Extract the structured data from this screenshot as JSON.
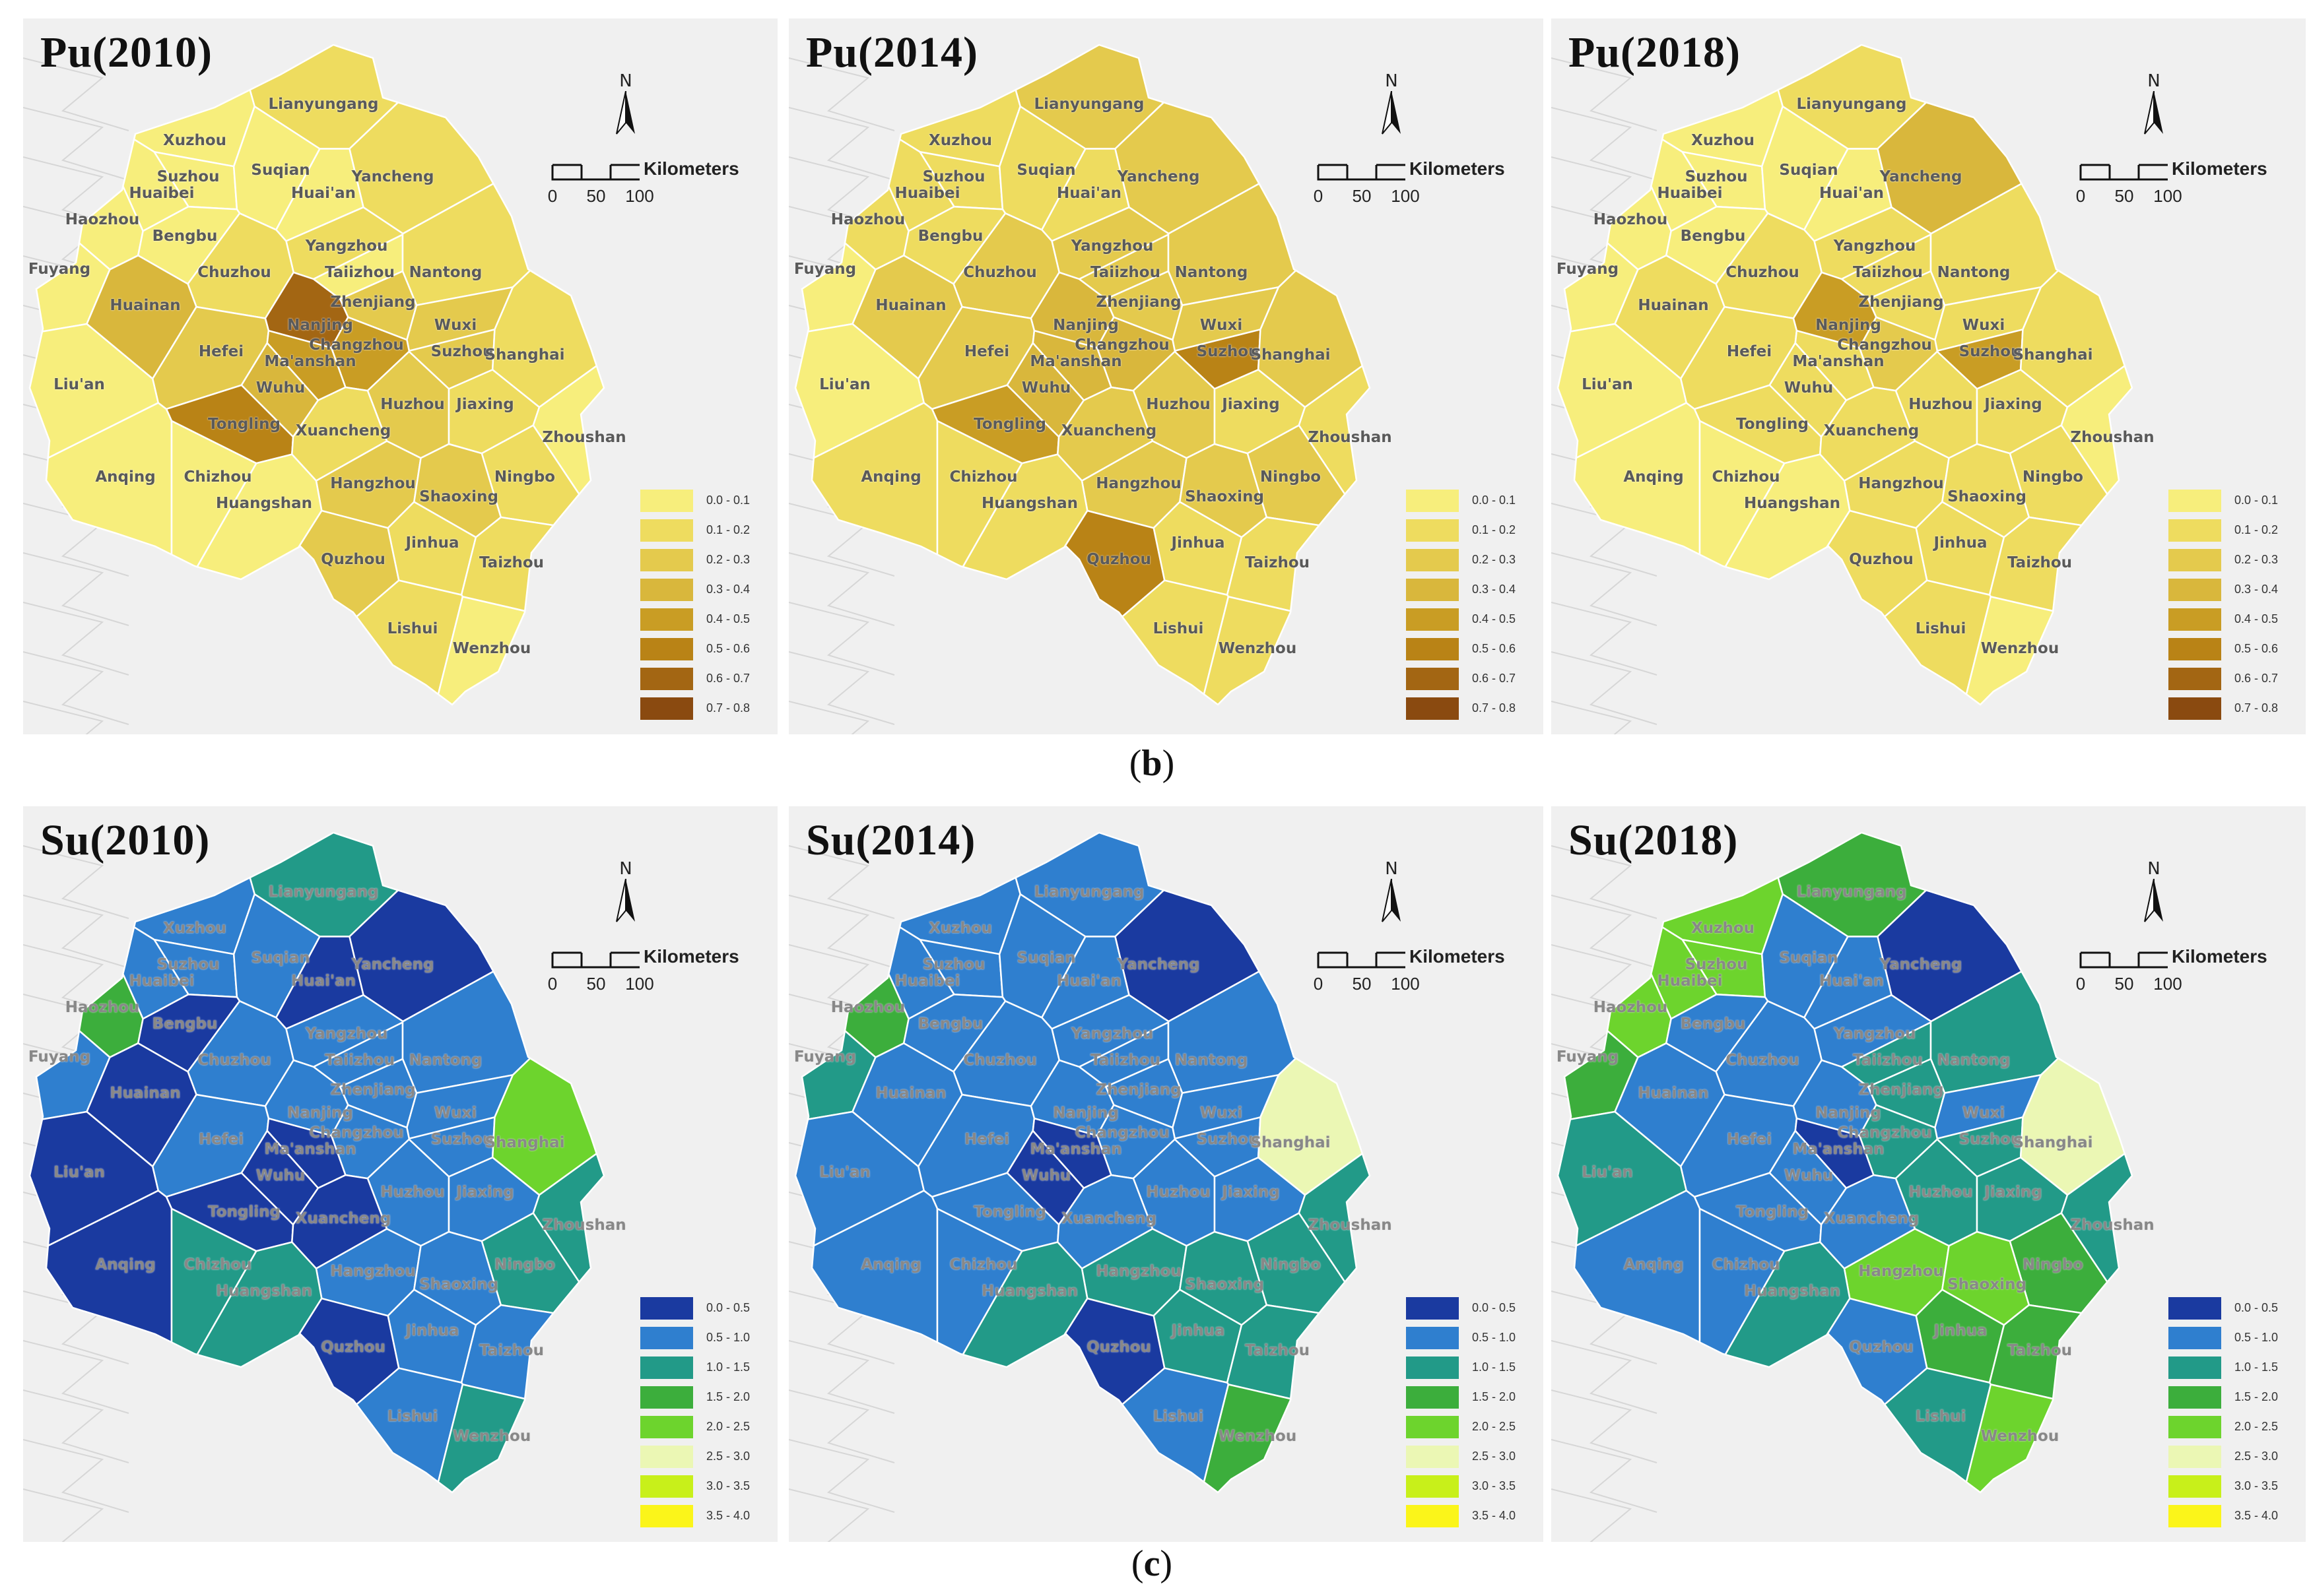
{
  "figure": {
    "captions": [
      {
        "open": "(",
        "letter": "b",
        "close": ")"
      },
      {
        "open": "(",
        "letter": "c",
        "close": ")"
      }
    ]
  },
  "map_common": {
    "north_label": "N",
    "scale_units": "Kilometers",
    "scale_ticks": [
      "0",
      "50",
      "100"
    ]
  },
  "legends": {
    "pu": [
      {
        "label": "0.0 - 0.1",
        "color": "#f7ee7c"
      },
      {
        "label": "0.1 - 0.2",
        "color": "#eedc5f"
      },
      {
        "label": "0.2 - 0.3",
        "color": "#e4ca4d"
      },
      {
        "label": "0.3 - 0.4",
        "color": "#d9b73c"
      },
      {
        "label": "0.4 - 0.5",
        "color": "#c99d24"
      },
      {
        "label": "0.5 - 0.6",
        "color": "#b98316"
      },
      {
        "label": "0.6 - 0.7",
        "color": "#a36613"
      },
      {
        "label": "0.7 - 0.8",
        "color": "#8a4a10"
      }
    ],
    "su": [
      {
        "label": "0.0 - 0.5",
        "color": "#1a3aa0"
      },
      {
        "label": "0.5 - 1.0",
        "color": "#2f7fcf"
      },
      {
        "label": "1.0 - 1.5",
        "color": "#229a88"
      },
      {
        "label": "1.5 - 2.0",
        "color": "#3cae3c"
      },
      {
        "label": "2.0 - 2.5",
        "color": "#6dd42d"
      },
      {
        "label": "2.5 - 3.0",
        "color": "#ebf7b4"
      },
      {
        "label": "3.0 - 3.5",
        "color": "#c8f01a"
      },
      {
        "label": "3.5 - 4.0",
        "color": "#fbf51a"
      }
    ]
  },
  "cities": [
    "Lianyungang",
    "Xuzhou",
    "Suzhou",
    "Suqian",
    "Yancheng",
    "Huaibei",
    "Huai'an",
    "Haozhou",
    "Bengbu",
    "Yangzhou",
    "Fuyang",
    "Chuzhou",
    "Taiizhou",
    "Nantong",
    "Huainan",
    "Zhenjiang",
    "Nanjing",
    "Wuxi",
    "Hefei",
    "Changzhou",
    "Suzhou",
    "Shanghai",
    "Liu'an",
    "Ma'anshan",
    "Wuhu",
    "Huzhou",
    "Jiaxing",
    "Tongling",
    "Xuancheng",
    "Zhoushan",
    "Anqing",
    "Chizhou",
    "Hangzhou",
    "Ningbo",
    "Huangshan",
    "Shaoxing",
    "Jinhua",
    "Quzhou",
    "Taizhou",
    "Lishui",
    "Wenzhou"
  ],
  "panels": [
    {
      "id": "pu2010",
      "row": "top",
      "title": "Pu(2010)",
      "legend": "pu",
      "fills": [
        1,
        0,
        0,
        0,
        1,
        0,
        0,
        0,
        0,
        1,
        0,
        1,
        0,
        1,
        3,
        2,
        6,
        2,
        2,
        4,
        2,
        1,
        0,
        4,
        3,
        2,
        1,
        5,
        1,
        0,
        0,
        0,
        2,
        1,
        0,
        2,
        1,
        2,
        1,
        1,
        0
      ]
    },
    {
      "id": "pu2014",
      "row": "top",
      "title": "Pu(2014)",
      "legend": "pu",
      "fills": [
        2,
        1,
        1,
        1,
        2,
        1,
        1,
        1,
        1,
        2,
        0,
        2,
        2,
        2,
        2,
        2,
        3,
        2,
        2,
        3,
        5,
        2,
        0,
        3,
        3,
        2,
        1,
        4,
        2,
        1,
        1,
        1,
        2,
        2,
        1,
        2,
        1,
        5,
        1,
        1,
        1
      ]
    },
    {
      "id": "pu2018",
      "row": "top",
      "title": "Pu(2018)",
      "legend": "pu",
      "fills": [
        1,
        0,
        0,
        0,
        3,
        0,
        0,
        0,
        0,
        1,
        0,
        1,
        1,
        1,
        1,
        1,
        4,
        1,
        1,
        2,
        4,
        1,
        0,
        1,
        1,
        1,
        1,
        1,
        1,
        0,
        0,
        0,
        1,
        1,
        0,
        1,
        1,
        1,
        1,
        1,
        0
      ]
    },
    {
      "id": "su2010",
      "row": "bot",
      "title": "Su(2010)",
      "legend": "su",
      "fills": [
        2,
        1,
        1,
        1,
        0,
        1,
        0,
        3,
        0,
        1,
        1,
        1,
        1,
        1,
        0,
        1,
        1,
        1,
        1,
        1,
        1,
        4,
        0,
        0,
        0,
        1,
        1,
        0,
        0,
        2,
        0,
        2,
        1,
        2,
        2,
        1,
        1,
        0,
        1,
        1,
        2
      ]
    },
    {
      "id": "su2014",
      "row": "bot",
      "title": "Su(2014)",
      "legend": "su",
      "fills": [
        1,
        1,
        1,
        1,
        0,
        1,
        1,
        3,
        1,
        1,
        2,
        1,
        1,
        1,
        1,
        1,
        1,
        1,
        1,
        1,
        1,
        5,
        1,
        0,
        0,
        1,
        1,
        1,
        1,
        2,
        1,
        1,
        2,
        2,
        2,
        2,
        2,
        0,
        2,
        1,
        3
      ]
    },
    {
      "id": "su2018",
      "row": "bot",
      "title": "Su(2018)",
      "legend": "su",
      "fills": [
        3,
        4,
        4,
        1,
        0,
        4,
        1,
        4,
        1,
        1,
        3,
        1,
        2,
        2,
        1,
        2,
        1,
        1,
        1,
        2,
        2,
        5,
        2,
        0,
        1,
        2,
        2,
        1,
        1,
        2,
        1,
        1,
        4,
        3,
        2,
        4,
        3,
        1,
        3,
        2,
        4
      ]
    }
  ]
}
